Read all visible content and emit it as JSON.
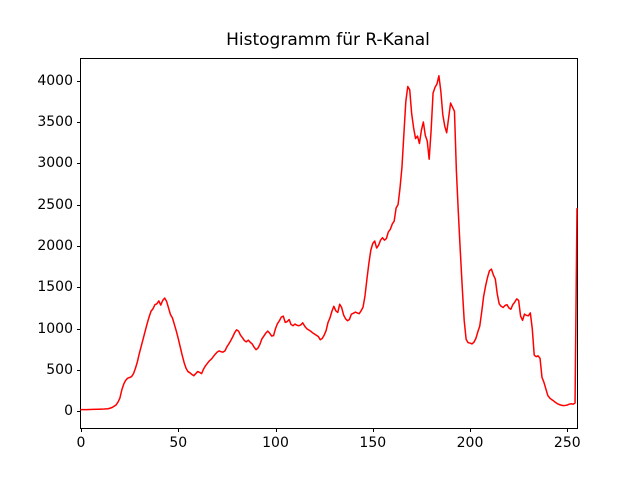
{
  "figure": {
    "background": "#ffffff",
    "text_color": "#000000"
  },
  "chart_data": {
    "type": "line",
    "title": "Histogramm für R-Kanal",
    "xlabel": "",
    "ylabel": "",
    "grid": false,
    "legend_position": "none",
    "line_color": "#ff0000",
    "line_width": 1.5,
    "xlim": [
      0,
      255
    ],
    "ylim": [
      -203,
      4263
    ],
    "xticks": [
      0,
      50,
      100,
      150,
      200,
      250
    ],
    "yticks": [
      0,
      500,
      1000,
      1500,
      2000,
      2500,
      3000,
      3500,
      4000
    ],
    "series": [
      {
        "name": "R-Kanal",
        "points": [
          [
            0,
            20
          ],
          [
            3,
            20
          ],
          [
            6,
            22
          ],
          [
            9,
            24
          ],
          [
            12,
            27
          ],
          [
            14,
            30
          ],
          [
            16,
            45
          ],
          [
            18,
            75
          ],
          [
            19,
            110
          ],
          [
            20,
            160
          ],
          [
            21,
            260
          ],
          [
            22,
            330
          ],
          [
            23,
            375
          ],
          [
            24,
            400
          ],
          [
            25,
            408
          ],
          [
            26,
            420
          ],
          [
            27,
            455
          ],
          [
            28,
            520
          ],
          [
            29,
            600
          ],
          [
            30,
            700
          ],
          [
            31,
            790
          ],
          [
            32,
            880
          ],
          [
            33,
            970
          ],
          [
            34,
            1060
          ],
          [
            35,
            1140
          ],
          [
            36,
            1210
          ],
          [
            37,
            1240
          ],
          [
            38,
            1290
          ],
          [
            39,
            1300
          ],
          [
            40,
            1335
          ],
          [
            41,
            1285
          ],
          [
            42,
            1340
          ],
          [
            43,
            1370
          ],
          [
            44,
            1330
          ],
          [
            45,
            1250
          ],
          [
            46,
            1170
          ],
          [
            47,
            1130
          ],
          [
            48,
            1050
          ],
          [
            49,
            970
          ],
          [
            50,
            880
          ],
          [
            51,
            780
          ],
          [
            52,
            680
          ],
          [
            53,
            590
          ],
          [
            54,
            520
          ],
          [
            55,
            480
          ],
          [
            56,
            465
          ],
          [
            57,
            445
          ],
          [
            58,
            430
          ],
          [
            59,
            455
          ],
          [
            60,
            480
          ],
          [
            61,
            470
          ],
          [
            62,
            455
          ],
          [
            63,
            510
          ],
          [
            64,
            550
          ],
          [
            65,
            580
          ],
          [
            66,
            610
          ],
          [
            67,
            630
          ],
          [
            68,
            660
          ],
          [
            69,
            690
          ],
          [
            70,
            715
          ],
          [
            71,
            730
          ],
          [
            72,
            720
          ],
          [
            73,
            715
          ],
          [
            74,
            730
          ],
          [
            75,
            780
          ],
          [
            76,
            815
          ],
          [
            77,
            855
          ],
          [
            78,
            900
          ],
          [
            79,
            950
          ],
          [
            80,
            985
          ],
          [
            81,
            970
          ],
          [
            82,
            920
          ],
          [
            83,
            890
          ],
          [
            84,
            855
          ],
          [
            85,
            840
          ],
          [
            86,
            860
          ],
          [
            87,
            835
          ],
          [
            88,
            815
          ],
          [
            89,
            775
          ],
          [
            90,
            745
          ],
          [
            91,
            765
          ],
          [
            92,
            810
          ],
          [
            93,
            875
          ],
          [
            94,
            910
          ],
          [
            95,
            945
          ],
          [
            96,
            970
          ],
          [
            97,
            945
          ],
          [
            98,
            910
          ],
          [
            99,
            915
          ],
          [
            100,
            1000
          ],
          [
            101,
            1060
          ],
          [
            102,
            1095
          ],
          [
            103,
            1140
          ],
          [
            104,
            1150
          ],
          [
            105,
            1075
          ],
          [
            106,
            1085
          ],
          [
            107,
            1110
          ],
          [
            108,
            1050
          ],
          [
            109,
            1035
          ],
          [
            110,
            1055
          ],
          [
            111,
            1040
          ],
          [
            112,
            1035
          ],
          [
            113,
            1045
          ],
          [
            114,
            1070
          ],
          [
            115,
            1030
          ],
          [
            116,
            1000
          ],
          [
            117,
            985
          ],
          [
            118,
            970
          ],
          [
            119,
            950
          ],
          [
            120,
            935
          ],
          [
            121,
            920
          ],
          [
            122,
            905
          ],
          [
            123,
            865
          ],
          [
            124,
            880
          ],
          [
            125,
            920
          ],
          [
            126,
            975
          ],
          [
            127,
            1075
          ],
          [
            128,
            1130
          ],
          [
            129,
            1210
          ],
          [
            130,
            1270
          ],
          [
            131,
            1215
          ],
          [
            132,
            1195
          ],
          [
            133,
            1295
          ],
          [
            134,
            1255
          ],
          [
            135,
            1165
          ],
          [
            136,
            1120
          ],
          [
            137,
            1095
          ],
          [
            138,
            1110
          ],
          [
            139,
            1175
          ],
          [
            140,
            1185
          ],
          [
            141,
            1200
          ],
          [
            142,
            1190
          ],
          [
            143,
            1180
          ],
          [
            144,
            1215
          ],
          [
            145,
            1260
          ],
          [
            146,
            1395
          ],
          [
            147,
            1600
          ],
          [
            148,
            1790
          ],
          [
            149,
            1950
          ],
          [
            150,
            2030
          ],
          [
            151,
            2060
          ],
          [
            152,
            1975
          ],
          [
            153,
            2010
          ],
          [
            154,
            2070
          ],
          [
            155,
            2100
          ],
          [
            156,
            2070
          ],
          [
            157,
            2090
          ],
          [
            158,
            2170
          ],
          [
            159,
            2200
          ],
          [
            160,
            2265
          ],
          [
            161,
            2300
          ],
          [
            162,
            2460
          ],
          [
            163,
            2500
          ],
          [
            164,
            2700
          ],
          [
            165,
            2950
          ],
          [
            166,
            3355
          ],
          [
            167,
            3750
          ],
          [
            168,
            3930
          ],
          [
            169,
            3890
          ],
          [
            170,
            3600
          ],
          [
            171,
            3430
          ],
          [
            172,
            3300
          ],
          [
            173,
            3330
          ],
          [
            174,
            3240
          ],
          [
            175,
            3400
          ],
          [
            176,
            3500
          ],
          [
            177,
            3340
          ],
          [
            178,
            3270
          ],
          [
            179,
            3050
          ],
          [
            180,
            3400
          ],
          [
            181,
            3850
          ],
          [
            182,
            3920
          ],
          [
            183,
            3960
          ],
          [
            184,
            4060
          ],
          [
            185,
            3870
          ],
          [
            186,
            3590
          ],
          [
            187,
            3450
          ],
          [
            188,
            3370
          ],
          [
            189,
            3550
          ],
          [
            190,
            3730
          ],
          [
            191,
            3680
          ],
          [
            192,
            3630
          ],
          [
            193,
            2905
          ],
          [
            194,
            2400
          ],
          [
            195,
            1940
          ],
          [
            196,
            1500
          ],
          [
            197,
            1100
          ],
          [
            198,
            870
          ],
          [
            199,
            830
          ],
          [
            200,
            825
          ],
          [
            201,
            815
          ],
          [
            202,
            835
          ],
          [
            203,
            880
          ],
          [
            204,
            960
          ],
          [
            205,
            1030
          ],
          [
            206,
            1200
          ],
          [
            207,
            1390
          ],
          [
            208,
            1515
          ],
          [
            209,
            1620
          ],
          [
            210,
            1700
          ],
          [
            211,
            1720
          ],
          [
            212,
            1650
          ],
          [
            213,
            1600
          ],
          [
            214,
            1420
          ],
          [
            215,
            1300
          ],
          [
            216,
            1270
          ],
          [
            217,
            1255
          ],
          [
            218,
            1280
          ],
          [
            219,
            1290
          ],
          [
            220,
            1250
          ],
          [
            221,
            1235
          ],
          [
            222,
            1290
          ],
          [
            223,
            1320
          ],
          [
            224,
            1360
          ],
          [
            225,
            1340
          ],
          [
            226,
            1150
          ],
          [
            227,
            1100
          ],
          [
            228,
            1175
          ],
          [
            229,
            1160
          ],
          [
            230,
            1155
          ],
          [
            231,
            1190
          ],
          [
            232,
            1000
          ],
          [
            233,
            680
          ],
          [
            234,
            660
          ],
          [
            235,
            670
          ],
          [
            236,
            640
          ],
          [
            237,
            410
          ],
          [
            238,
            350
          ],
          [
            239,
            270
          ],
          [
            240,
            190
          ],
          [
            241,
            160
          ],
          [
            242,
            140
          ],
          [
            243,
            125
          ],
          [
            244,
            105
          ],
          [
            245,
            90
          ],
          [
            246,
            80
          ],
          [
            247,
            72
          ],
          [
            248,
            68
          ],
          [
            249,
            70
          ],
          [
            250,
            75
          ],
          [
            251,
            85
          ],
          [
            252,
            90
          ],
          [
            253,
            85
          ],
          [
            254,
            100
          ],
          [
            255,
            2450
          ]
        ]
      }
    ]
  }
}
